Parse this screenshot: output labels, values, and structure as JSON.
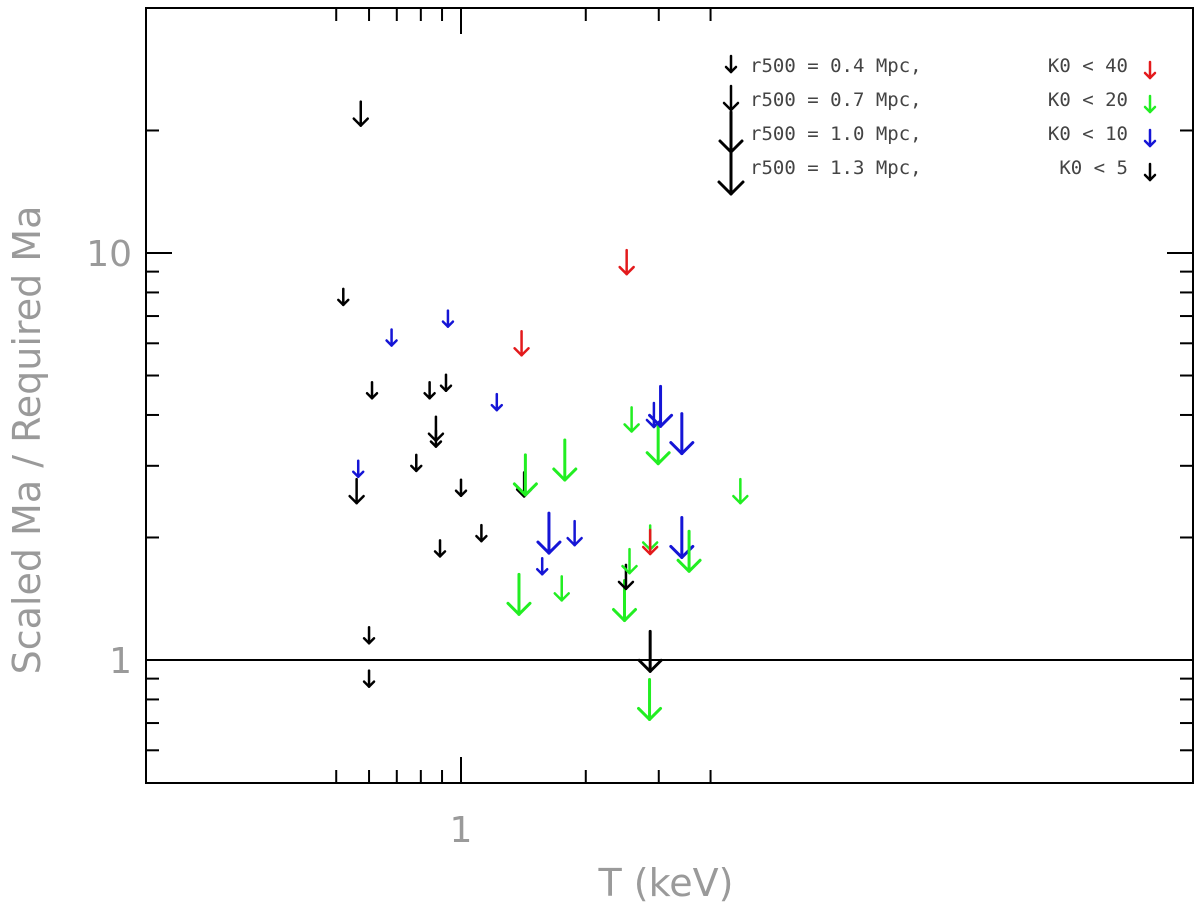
{
  "chart_data": {
    "type": "scatter",
    "marker": "down-arrow (upper limit)",
    "x_scale": "log",
    "y_scale": "log",
    "xlabel": "T (keV)",
    "ylabel": "Scaled Ma / Required Ma",
    "xlim": [
      0.5,
      4.9
    ],
    "ylim": [
      0.6,
      25
    ],
    "x_tick_labels": [
      {
        "value": 1,
        "label": "1"
      }
    ],
    "y_tick_labels": [
      {
        "value": 1,
        "label": "1"
      },
      {
        "value": 10,
        "label": "10"
      }
    ],
    "reference_line": {
      "y": 1
    },
    "grid": false,
    "legend_position": "top-right",
    "size_legend": [
      {
        "label": "r500 = 0.4 Mpc,",
        "size": "small"
      },
      {
        "label": "r500 = 0.7 Mpc,",
        "size": "medium"
      },
      {
        "label": "r500 = 1.0 Mpc,",
        "size": "large"
      },
      {
        "label": "r500 = 1.3 Mpc,",
        "size": "xlarge"
      }
    ],
    "color_legend": [
      {
        "label": "K0 < 40",
        "color": "#e31a1c"
      },
      {
        "label": "K0 < 20",
        "color": "#22ee22"
      },
      {
        "label": "K0 < 10",
        "color": "#1515d6"
      },
      {
        "label": "K0 <  5",
        "color": "#000000"
      }
    ],
    "points": [
      {
        "x": 0.573,
        "y": 22.0,
        "color": "#000000",
        "size": "medium"
      },
      {
        "x": 0.52,
        "y": 7.8,
        "color": "#000000",
        "size": "small"
      },
      {
        "x": 0.56,
        "y": 2.6,
        "color": "#000000",
        "size": "medium"
      },
      {
        "x": 0.565,
        "y": 2.95,
        "color": "#1515d6",
        "size": "small"
      },
      {
        "x": 0.61,
        "y": 4.6,
        "color": "#000000",
        "size": "small"
      },
      {
        "x": 0.6,
        "y": 1.15,
        "color": "#000000",
        "size": "small"
      },
      {
        "x": 0.6,
        "y": 0.9,
        "color": "#000000",
        "size": "small"
      },
      {
        "x": 0.68,
        "y": 6.2,
        "color": "#1515d6",
        "size": "small"
      },
      {
        "x": 0.78,
        "y": 3.05,
        "color": "#000000",
        "size": "small"
      },
      {
        "x": 0.84,
        "y": 4.6,
        "color": "#000000",
        "size": "small"
      },
      {
        "x": 0.87,
        "y": 3.7,
        "color": "#000000",
        "size": "medium"
      },
      {
        "x": 0.87,
        "y": 3.5,
        "color": "#000000",
        "size": "small"
      },
      {
        "x": 0.89,
        "y": 1.88,
        "color": "#000000",
        "size": "small"
      },
      {
        "x": 0.92,
        "y": 4.8,
        "color": "#000000",
        "size": "small"
      },
      {
        "x": 0.93,
        "y": 6.9,
        "color": "#1515d6",
        "size": "small"
      },
      {
        "x": 1.0,
        "y": 2.65,
        "color": "#000000",
        "size": "small"
      },
      {
        "x": 1.12,
        "y": 2.05,
        "color": "#000000",
        "size": "small"
      },
      {
        "x": 1.22,
        "y": 4.3,
        "color": "#1515d6",
        "size": "small"
      },
      {
        "x": 1.38,
        "y": 1.45,
        "color": "#22ee22",
        "size": "large"
      },
      {
        "x": 1.4,
        "y": 6.0,
        "color": "#e31a1c",
        "size": "medium"
      },
      {
        "x": 1.42,
        "y": 2.7,
        "color": "#000000",
        "size": "medium"
      },
      {
        "x": 1.43,
        "y": 2.85,
        "color": "#22ee22",
        "size": "large"
      },
      {
        "x": 1.57,
        "y": 1.7,
        "color": "#1515d6",
        "size": "small"
      },
      {
        "x": 1.63,
        "y": 2.05,
        "color": "#1515d6",
        "size": "large"
      },
      {
        "x": 1.75,
        "y": 1.5,
        "color": "#22ee22",
        "size": "medium"
      },
      {
        "x": 1.78,
        "y": 3.1,
        "color": "#22ee22",
        "size": "large"
      },
      {
        "x": 1.88,
        "y": 2.05,
        "color": "#1515d6",
        "size": "medium"
      },
      {
        "x": 2.48,
        "y": 1.4,
        "color": "#22ee22",
        "size": "large"
      },
      {
        "x": 2.5,
        "y": 1.6,
        "color": "#000000",
        "size": "medium"
      },
      {
        "x": 2.51,
        "y": 9.5,
        "color": "#e31a1c",
        "size": "medium"
      },
      {
        "x": 2.55,
        "y": 1.75,
        "color": "#22ee22",
        "size": "medium"
      },
      {
        "x": 2.58,
        "y": 3.9,
        "color": "#22ee22",
        "size": "medium"
      },
      {
        "x": 2.86,
        "y": 2.0,
        "color": "#22ee22",
        "size": "medium"
      },
      {
        "x": 2.86,
        "y": 1.95,
        "color": "#e31a1c",
        "size": "medium"
      },
      {
        "x": 2.86,
        "y": 1.05,
        "color": "#000000",
        "size": "large"
      },
      {
        "x": 2.85,
        "y": 0.8,
        "color": "#22ee22",
        "size": "large"
      },
      {
        "x": 2.92,
        "y": 4.0,
        "color": "#1515d6",
        "size": "medium"
      },
      {
        "x": 2.99,
        "y": 3.4,
        "color": "#22ee22",
        "size": "large"
      },
      {
        "x": 3.03,
        "y": 4.2,
        "color": "#1515d6",
        "size": "large"
      },
      {
        "x": 3.41,
        "y": 3.6,
        "color": "#1515d6",
        "size": "large"
      },
      {
        "x": 3.41,
        "y": 2.0,
        "color": "#1515d6",
        "size": "large"
      },
      {
        "x": 3.55,
        "y": 1.85,
        "color": "#22ee22",
        "size": "large"
      },
      {
        "x": 4.72,
        "y": 2.6,
        "color": "#22ee22",
        "size": "medium"
      }
    ]
  }
}
